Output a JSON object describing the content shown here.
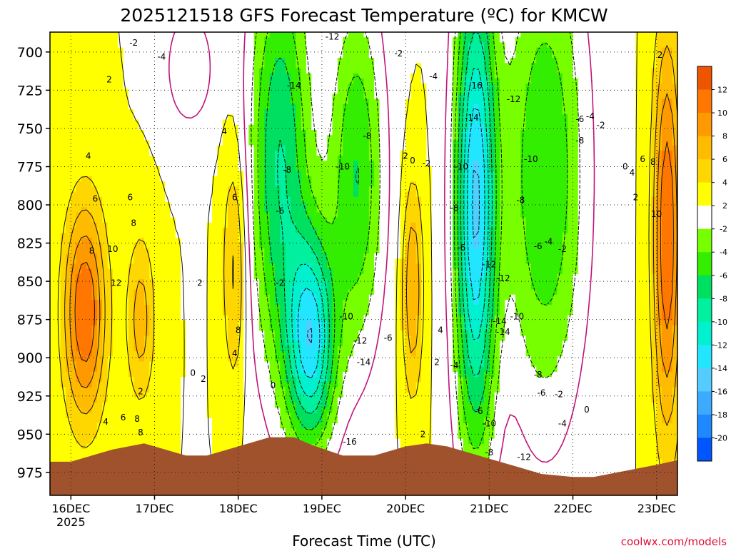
{
  "chart_data": {
    "type": "heatmap",
    "title": "2025121518 GFS Forecast Temperature (ºC) for KMCW",
    "xlabel": "Forecast Time (UTC)",
    "ylabel": "",
    "credit": "coolwx.com/models",
    "x_ticks": [
      {
        "label": "16DEC",
        "sub": "2025",
        "hours": 6
      },
      {
        "label": "17DEC",
        "sub": "",
        "hours": 30
      },
      {
        "label": "18DEC",
        "sub": "",
        "hours": 54
      },
      {
        "label": "19DEC",
        "sub": "",
        "hours": 78
      },
      {
        "label": "20DEC",
        "sub": "",
        "hours": 102
      },
      {
        "label": "21DEC",
        "sub": "",
        "hours": 126
      },
      {
        "label": "22DEC",
        "sub": "",
        "hours": 150
      },
      {
        "label": "23DEC",
        "sub": "",
        "hours": 174
      }
    ],
    "xlim_hours": [
      0,
      180
    ],
    "y_ticks": [
      700,
      725,
      750,
      775,
      800,
      825,
      850,
      875,
      900,
      925,
      950,
      975
    ],
    "ylim": [
      687,
      990
    ],
    "colorbar": {
      "levels": [
        -22,
        -20,
        -18,
        -16,
        -14,
        -12,
        -10,
        -8,
        -6,
        -4,
        -2,
        2,
        4,
        6,
        8,
        10,
        12,
        14
      ],
      "labels": [
        "-20",
        "-18",
        "-16",
        "-14",
        "-12",
        "-10",
        "-8",
        "-6",
        "-4",
        "-2",
        "2",
        "4",
        "6",
        "8",
        "10",
        "12"
      ],
      "colors": [
        "#0055ff",
        "#1e88ff",
        "#3caaff",
        "#55ccff",
        "#22e6ff",
        "#00f0d0",
        "#00f0a0",
        "#00e060",
        "#33ee00",
        "#77ff00",
        "#ffffff",
        "#ffff00",
        "#ffd700",
        "#ffbb00",
        "#ff9900",
        "#ff7700",
        "#ee5500"
      ]
    },
    "terrain_color": "#a0522d",
    "terrain_top_mb": [
      {
        "h": 0,
        "p": 968
      },
      {
        "h": 6,
        "p": 968
      },
      {
        "h": 18,
        "p": 960
      },
      {
        "h": 27,
        "p": 956
      },
      {
        "h": 30,
        "p": 958
      },
      {
        "h": 39,
        "p": 964
      },
      {
        "h": 45,
        "p": 964
      },
      {
        "h": 54,
        "p": 958
      },
      {
        "h": 63,
        "p": 952
      },
      {
        "h": 70,
        "p": 952
      },
      {
        "h": 75,
        "p": 957
      },
      {
        "h": 84,
        "p": 964
      },
      {
        "h": 93,
        "p": 964
      },
      {
        "h": 102,
        "p": 958
      },
      {
        "h": 108,
        "p": 956
      },
      {
        "h": 114,
        "p": 958
      },
      {
        "h": 120,
        "p": 962
      },
      {
        "h": 126,
        "p": 966
      },
      {
        "h": 135,
        "p": 972
      },
      {
        "h": 141,
        "p": 976
      },
      {
        "h": 150,
        "p": 978
      },
      {
        "h": 156,
        "p": 978
      },
      {
        "h": 165,
        "p": 974
      },
      {
        "h": 174,
        "p": 970
      },
      {
        "h": 180,
        "p": 967
      }
    ],
    "field": {
      "base_surface": 2,
      "base_lapse_per_100mb": 0,
      "features": [
        {
          "h": 10,
          "p": 870,
          "sh": 6,
          "sp": 70,
          "a": 10
        },
        {
          "h": 26,
          "p": 875,
          "sh": 4,
          "sp": 55,
          "a": 5
        },
        {
          "h": 53,
          "p": 840,
          "sh": 3.5,
          "sp": 80,
          "a": 5
        },
        {
          "h": 104,
          "p": 855,
          "sh": 3,
          "sp": 70,
          "a": 6
        },
        {
          "h": 177,
          "p": 820,
          "sh": 4,
          "sp": 130,
          "a": 10
        },
        {
          "h": 75,
          "p": 890,
          "sh": 7,
          "sp": 70,
          "a": -14
        },
        {
          "h": 66,
          "p": 770,
          "sh": 9,
          "sp": 140,
          "a": -10
        },
        {
          "h": 88,
          "p": 780,
          "sh": 8,
          "sp": 120,
          "a": -8
        },
        {
          "h": 122,
          "p": 800,
          "sh": 6,
          "sp": 160,
          "a": -16
        },
        {
          "h": 142,
          "p": 780,
          "sh": 12,
          "sp": 160,
          "a": -8
        },
        {
          "h": 40,
          "p": 710,
          "sh": 7,
          "sp": 40,
          "a": -4
        }
      ]
    },
    "contour_labels": [
      {
        "h": 24,
        "p": 694,
        "v": "-2"
      },
      {
        "h": 32,
        "p": 703,
        "v": "-4"
      },
      {
        "h": 17,
        "p": 718,
        "v": "2"
      },
      {
        "h": 11,
        "p": 768,
        "v": "4"
      },
      {
        "h": 13,
        "p": 796,
        "v": "6"
      },
      {
        "h": 23,
        "p": 795,
        "v": "6"
      },
      {
        "h": 24,
        "p": 812,
        "v": "8"
      },
      {
        "h": 12,
        "p": 830,
        "v": "8"
      },
      {
        "h": 18,
        "p": 829,
        "v": "10"
      },
      {
        "h": 19,
        "p": 851,
        "v": "12"
      },
      {
        "h": 26,
        "p": 922,
        "v": "2"
      },
      {
        "h": 25,
        "p": 940,
        "v": "8"
      },
      {
        "h": 16,
        "p": 942,
        "v": "4"
      },
      {
        "h": 21,
        "p": 939,
        "v": "6"
      },
      {
        "h": 26,
        "p": 949,
        "v": "8"
      },
      {
        "h": 43,
        "p": 851,
        "v": "2"
      },
      {
        "h": 41,
        "p": 910,
        "v": "0"
      },
      {
        "h": 44,
        "p": 914,
        "v": "2"
      },
      {
        "h": 50,
        "p": 752,
        "v": "4"
      },
      {
        "h": 53,
        "p": 795,
        "v": "6"
      },
      {
        "h": 54,
        "p": 882,
        "v": "8"
      },
      {
        "h": 53,
        "p": 897,
        "v": "4"
      },
      {
        "h": 66,
        "p": 851,
        "v": "-2"
      },
      {
        "h": 64,
        "p": 918,
        "v": "0"
      },
      {
        "h": 66,
        "p": 804,
        "v": "-6"
      },
      {
        "h": 68,
        "p": 777,
        "v": "-8"
      },
      {
        "h": 70,
        "p": 722,
        "v": "-14"
      },
      {
        "h": 81,
        "p": 690,
        "v": "-12"
      },
      {
        "h": 84,
        "p": 775,
        "v": "-10"
      },
      {
        "h": 91,
        "p": 755,
        "v": "-8"
      },
      {
        "h": 85,
        "p": 873,
        "v": "-10"
      },
      {
        "h": 89,
        "p": 889,
        "v": "-12"
      },
      {
        "h": 90,
        "p": 903,
        "v": "-14"
      },
      {
        "h": 97,
        "p": 887,
        "v": "-6"
      },
      {
        "h": 86,
        "p": 955,
        "v": "-16"
      },
      {
        "h": 100,
        "p": 701,
        "v": "-2"
      },
      {
        "h": 102,
        "p": 768,
        "v": "2"
      },
      {
        "h": 104,
        "p": 771,
        "v": "0"
      },
      {
        "h": 108,
        "p": 773,
        "v": "-2"
      },
      {
        "h": 110,
        "p": 716,
        "v": "-4"
      },
      {
        "h": 112,
        "p": 882,
        "v": "4"
      },
      {
        "h": 111,
        "p": 903,
        "v": "2"
      },
      {
        "h": 107,
        "p": 950,
        "v": "2"
      },
      {
        "h": 116,
        "p": 802,
        "v": "-8"
      },
      {
        "h": 118,
        "p": 775,
        "v": "-10"
      },
      {
        "h": 118,
        "p": 828,
        "v": "-6"
      },
      {
        "h": 116,
        "p": 905,
        "v": "-4"
      },
      {
        "h": 122,
        "p": 722,
        "v": "-16"
      },
      {
        "h": 121,
        "p": 743,
        "v": "-14"
      },
      {
        "h": 126,
        "p": 839,
        "v": "-12"
      },
      {
        "h": 123,
        "p": 935,
        "v": "-6"
      },
      {
        "h": 126,
        "p": 943,
        "v": "-10"
      },
      {
        "h": 126,
        "p": 962,
        "v": "-8"
      },
      {
        "h": 133,
        "p": 731,
        "v": "-12"
      },
      {
        "h": 130,
        "p": 848,
        "v": "-12"
      },
      {
        "h": 129,
        "p": 876,
        "v": "-14"
      },
      {
        "h": 130,
        "p": 883,
        "v": "-14"
      },
      {
        "h": 134,
        "p": 873,
        "v": "-10"
      },
      {
        "h": 138,
        "p": 770,
        "v": "-10"
      },
      {
        "h": 135,
        "p": 797,
        "v": "-8"
      },
      {
        "h": 140,
        "p": 827,
        "v": "-6"
      },
      {
        "h": 143,
        "p": 824,
        "v": "-4"
      },
      {
        "h": 147,
        "p": 829,
        "v": "-2"
      },
      {
        "h": 136,
        "p": 965,
        "v": "-12"
      },
      {
        "h": 140,
        "p": 911,
        "v": "-8"
      },
      {
        "h": 141,
        "p": 923,
        "v": "-6"
      },
      {
        "h": 146,
        "p": 924,
        "v": "-2"
      },
      {
        "h": 147,
        "p": 943,
        "v": "-4"
      },
      {
        "h": 152,
        "p": 744,
        "v": "-6"
      },
      {
        "h": 152,
        "p": 758,
        "v": "-8"
      },
      {
        "h": 155,
        "p": 742,
        "v": "-4"
      },
      {
        "h": 158,
        "p": 748,
        "v": "-2"
      },
      {
        "h": 154,
        "p": 934,
        "v": "0"
      },
      {
        "h": 165,
        "p": 775,
        "v": "0"
      },
      {
        "h": 167,
        "p": 779,
        "v": "4"
      },
      {
        "h": 168,
        "p": 795,
        "v": "2"
      },
      {
        "h": 170,
        "p": 770,
        "v": "6"
      },
      {
        "h": 173,
        "p": 772,
        "v": "8"
      },
      {
        "h": 174,
        "p": 806,
        "v": "10"
      },
      {
        "h": 175,
        "p": 702,
        "v": "2"
      }
    ]
  }
}
